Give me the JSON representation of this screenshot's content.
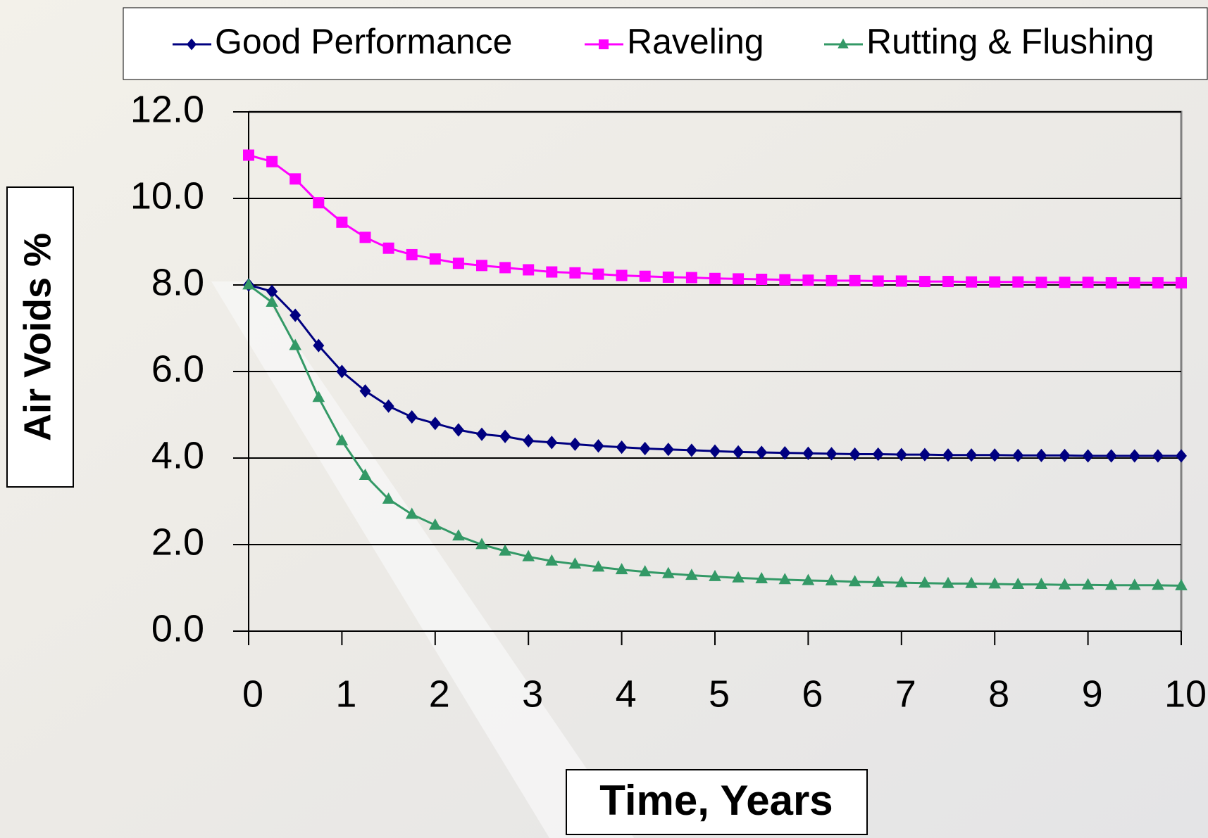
{
  "chart_data": {
    "type": "line",
    "x_label": "Time, Years",
    "y_label": "Air Voids %",
    "x": [
      0,
      0.25,
      0.5,
      0.75,
      1,
      1.25,
      1.5,
      1.75,
      2,
      2.25,
      2.5,
      2.75,
      3,
      3.25,
      3.5,
      3.75,
      4,
      4.25,
      4.5,
      4.75,
      5,
      5.25,
      5.5,
      5.75,
      6,
      6.25,
      6.5,
      6.75,
      7,
      7.25,
      7.5,
      7.75,
      8,
      8.25,
      8.5,
      8.75,
      9,
      9.25,
      9.5,
      9.75,
      10
    ],
    "series": [
      {
        "name": "Good Performance",
        "color": "#000080",
        "marker": "diamond",
        "values": [
          8,
          7.85,
          7.3,
          6.6,
          6.0,
          5.55,
          5.2,
          4.95,
          4.8,
          4.65,
          4.55,
          4.5,
          4.4,
          4.36,
          4.32,
          4.28,
          4.25,
          4.22,
          4.2,
          4.18,
          4.16,
          4.14,
          4.13,
          4.12,
          4.11,
          4.1,
          4.09,
          4.09,
          4.08,
          4.08,
          4.07,
          4.07,
          4.07,
          4.06,
          4.06,
          4.06,
          4.05,
          4.05,
          4.05,
          4.05,
          4.05
        ]
      },
      {
        "name": "Raveling",
        "color": "#ff00ff",
        "marker": "square",
        "values": [
          11,
          10.85,
          10.45,
          9.9,
          9.45,
          9.1,
          8.85,
          8.7,
          8.6,
          8.5,
          8.45,
          8.4,
          8.35,
          8.3,
          8.28,
          8.25,
          8.22,
          8.2,
          8.18,
          8.17,
          8.15,
          8.14,
          8.13,
          8.12,
          8.11,
          8.1,
          8.1,
          8.09,
          8.09,
          8.08,
          8.08,
          8.07,
          8.07,
          8.07,
          8.06,
          8.06,
          8.06,
          8.05,
          8.05,
          8.05,
          8.05
        ]
      },
      {
        "name": "Rutting & Flushing",
        "color": "#339966",
        "marker": "triangle",
        "values": [
          8,
          7.6,
          6.6,
          5.4,
          4.4,
          3.6,
          3.05,
          2.7,
          2.45,
          2.2,
          2.0,
          1.85,
          1.72,
          1.62,
          1.55,
          1.48,
          1.42,
          1.37,
          1.33,
          1.29,
          1.26,
          1.23,
          1.21,
          1.19,
          1.17,
          1.16,
          1.14,
          1.13,
          1.12,
          1.11,
          1.1,
          1.1,
          1.09,
          1.08,
          1.08,
          1.07,
          1.07,
          1.06,
          1.06,
          1.06,
          1.05
        ]
      }
    ],
    "xlim": [
      0,
      10
    ],
    "xticks": [
      0,
      1,
      2,
      3,
      4,
      5,
      6,
      7,
      8,
      9,
      10
    ],
    "ylim": [
      0,
      12
    ],
    "yticks": [
      {
        "value": 0,
        "label": "0.0"
      },
      {
        "value": 2,
        "label": "2.0"
      },
      {
        "value": 4,
        "label": "4.0"
      },
      {
        "value": 6,
        "label": "6.0"
      },
      {
        "value": 8,
        "label": "8.0"
      },
      {
        "value": 10,
        "label": "10.0"
      },
      {
        "value": 12,
        "label": "12.0"
      }
    ],
    "grid": true,
    "legend": "top"
  }
}
